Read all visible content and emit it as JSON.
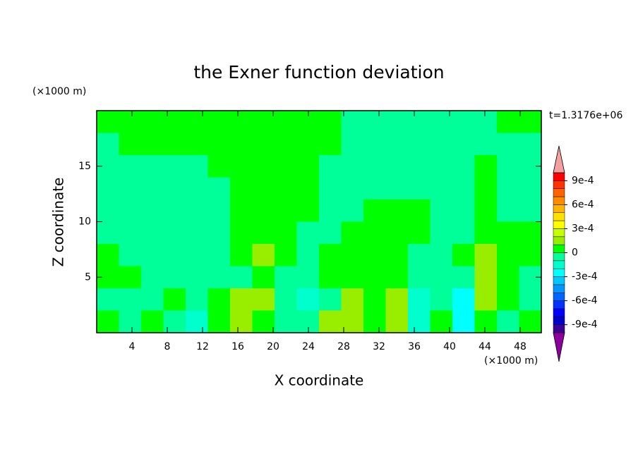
{
  "chart_data": {
    "type": "contourf",
    "title": "the Exner function deviation",
    "xlabel": "X coordinate",
    "ylabel": "Z coordinate",
    "x_unit": "(×1000 m)",
    "y_unit": "(×1000 m)",
    "annotation": "t=1.3176e+06",
    "xlim": [
      0,
      50.4
    ],
    "ylim": [
      0,
      20
    ],
    "xticks": [
      4,
      8,
      12,
      16,
      20,
      24,
      28,
      32,
      36,
      40,
      44,
      48
    ],
    "yticks": [
      5,
      10,
      15
    ],
    "z": [
      [
        5e-05,
        5e-05,
        5e-05,
        5e-05,
        5e-05,
        5e-05,
        5e-05,
        5e-05,
        5e-05,
        5e-05,
        5e-05,
        -5e-05,
        -5e-05,
        -5e-05,
        -5e-05,
        -5e-05,
        -5e-05,
        -5e-05,
        5e-05,
        5e-05
      ],
      [
        -5e-05,
        5e-05,
        5e-05,
        5e-05,
        5e-05,
        5e-05,
        5e-05,
        5e-05,
        5e-05,
        5e-05,
        5e-05,
        -5e-05,
        -5e-05,
        -5e-05,
        -5e-05,
        -5e-05,
        -5e-05,
        -5e-05,
        -5e-05,
        -5e-05
      ],
      [
        -5e-05,
        -5e-05,
        -5e-05,
        -5e-05,
        -5e-05,
        5e-05,
        5e-05,
        5e-05,
        5e-05,
        5e-05,
        -5e-05,
        -5e-05,
        -5e-05,
        -5e-05,
        -5e-05,
        -5e-05,
        -5e-05,
        5e-05,
        -5e-05,
        -5e-05
      ],
      [
        -5e-05,
        -5e-05,
        -5e-05,
        -5e-05,
        -5e-05,
        -5e-05,
        5e-05,
        5e-05,
        5e-05,
        5e-05,
        -5e-05,
        -5e-05,
        -5e-05,
        -5e-05,
        -5e-05,
        -5e-05,
        -5e-05,
        5e-05,
        -5e-05,
        -5e-05
      ],
      [
        -5e-05,
        -5e-05,
        -5e-05,
        -5e-05,
        -5e-05,
        -5e-05,
        5e-05,
        5e-05,
        5e-05,
        5e-05,
        -5e-05,
        -5e-05,
        5e-05,
        5e-05,
        5e-05,
        -5e-05,
        -5e-05,
        5e-05,
        -5e-05,
        -5e-05
      ],
      [
        -5e-05,
        -5e-05,
        -5e-05,
        -5e-05,
        -5e-05,
        -5e-05,
        5e-05,
        5e-05,
        5e-05,
        -5e-05,
        -5e-05,
        5e-05,
        5e-05,
        5e-05,
        5e-05,
        -5e-05,
        -5e-05,
        5e-05,
        5e-05,
        5e-05
      ],
      [
        5e-05,
        -5e-05,
        -5e-05,
        -5e-05,
        -5e-05,
        -5e-05,
        5e-05,
        0.00015,
        5e-05,
        -5e-05,
        5e-05,
        5e-05,
        5e-05,
        5e-05,
        -5e-05,
        -5e-05,
        5e-05,
        0.00015,
        5e-05,
        5e-05
      ],
      [
        5e-05,
        5e-05,
        -5e-05,
        -5e-05,
        -5e-05,
        -5e-05,
        -5e-05,
        5e-05,
        -5e-05,
        -5e-05,
        5e-05,
        5e-05,
        5e-05,
        5e-05,
        -5e-05,
        -5e-05,
        -5e-05,
        0.00015,
        5e-05,
        -5e-05
      ],
      [
        -5e-05,
        -5e-05,
        -5e-05,
        5e-05,
        -5e-05,
        5e-05,
        0.00015,
        0.00015,
        -5e-05,
        -0.00015,
        -5e-05,
        0.00015,
        5e-05,
        0.00015,
        -0.00015,
        -5e-05,
        -0.00025,
        0.00015,
        5e-05,
        -5e-05
      ],
      [
        5e-05,
        -5e-05,
        5e-05,
        -5e-05,
        -0.00015,
        5e-05,
        0.00015,
        5e-05,
        -5e-05,
        -5e-05,
        0.00015,
        0.00015,
        5e-05,
        0.00015,
        -0.00015,
        5e-05,
        -0.00025,
        5e-05,
        -5e-05,
        5e-05
      ]
    ],
    "levels": [
      -0.001,
      -0.0009,
      -0.0008,
      -0.0007,
      -0.0006,
      -0.0005,
      -0.0004,
      -0.0003,
      -0.0002,
      -0.0001,
      0,
      0.0001,
      0.0002,
      0.0003,
      0.0004,
      0.0005,
      0.0006,
      0.0007,
      0.0008,
      0.0009,
      0.001
    ],
    "colors": [
      "#3c0096",
      "#0000c8",
      "#0000ff",
      "#0032ff",
      "#0064ff",
      "#0096ff",
      "#00c8ff",
      "#00ffff",
      "#00ffcc",
      "#00ff99",
      "#00ff00",
      "#99ee00",
      "#c8ff00",
      "#ffff00",
      "#ffe000",
      "#ffb400",
      "#ff8c00",
      "#ff6400",
      "#ff3200",
      "#ff0000"
    ],
    "under_color": "#8c00a0",
    "over_color": "#f4a0a0",
    "colorbar_ticks": [
      {
        "value": -0.0009,
        "label": "-9e-4"
      },
      {
        "value": -0.0006,
        "label": "-6e-4"
      },
      {
        "value": -0.0003,
        "label": "-3e-4"
      },
      0,
      {
        "value": 0.0003,
        "label": "3e-4"
      },
      {
        "value": 0.0006,
        "label": "6e-4"
      },
      {
        "value": 0.0009,
        "label": "9e-4"
      }
    ]
  }
}
